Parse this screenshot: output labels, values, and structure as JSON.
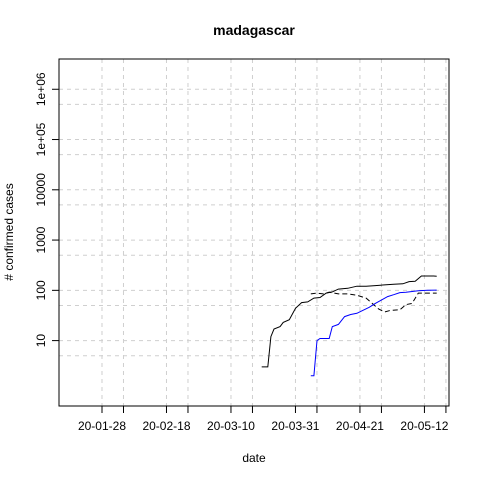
{
  "chart_data": {
    "type": "line",
    "title": "madagascar",
    "xlabel": "date",
    "ylabel": "# confirmed cases",
    "y_scale": "log",
    "ylim": [
      0.5,
      4000000
    ],
    "x_start": "2020-01-14",
    "x_end": "2020-05-20",
    "x_ticks": [
      "20-01-28",
      "20-02-18",
      "20-03-10",
      "20-03-31",
      "20-04-21",
      "20-05-12"
    ],
    "x_tick_dates": [
      "2020-01-28",
      "2020-02-18",
      "2020-03-10",
      "2020-03-31",
      "2020-04-21",
      "2020-05-12"
    ],
    "x_minor_grid_dates": [
      "2020-02-04",
      "2020-02-25",
      "2020-03-17",
      "2020-04-07",
      "2020-04-28",
      "2020-05-19"
    ],
    "y_ticks": [
      "10",
      "100",
      "1000",
      "10000",
      "1e+05",
      "1e+06"
    ],
    "y_tick_values": [
      10,
      100,
      1000,
      10000,
      100000,
      1000000
    ],
    "y_minor_grid_values": [
      5,
      50,
      500,
      5000,
      50000,
      500000
    ],
    "grid": true,
    "series": [
      {
        "style": "solid",
        "color": "#000000",
        "points": [
          [
            "2020-03-20",
            3
          ],
          [
            "2020-03-22",
            3
          ],
          [
            "2020-03-23",
            12
          ],
          [
            "2020-03-24",
            17
          ],
          [
            "2020-03-26",
            19
          ],
          [
            "2020-03-27",
            23
          ],
          [
            "2020-03-29",
            26
          ],
          [
            "2020-03-31",
            44
          ],
          [
            "2020-04-02",
            57
          ],
          [
            "2020-04-04",
            59
          ],
          [
            "2020-04-06",
            70
          ],
          [
            "2020-04-08",
            72
          ],
          [
            "2020-04-10",
            88
          ],
          [
            "2020-04-12",
            93
          ],
          [
            "2020-04-14",
            106
          ],
          [
            "2020-04-17",
            110
          ],
          [
            "2020-04-20",
            121
          ],
          [
            "2020-04-23",
            121
          ],
          [
            "2020-04-26",
            124
          ],
          [
            "2020-04-29",
            128
          ],
          [
            "2020-05-02",
            132
          ],
          [
            "2020-05-05",
            135
          ],
          [
            "2020-05-07",
            149
          ],
          [
            "2020-05-09",
            151
          ],
          [
            "2020-05-11",
            193
          ],
          [
            "2020-05-13",
            193
          ],
          [
            "2020-05-15",
            193
          ],
          [
            "2020-05-16",
            190
          ]
        ]
      },
      {
        "style": "dashed",
        "color": "#000000",
        "points": [
          [
            "2020-04-05",
            85
          ],
          [
            "2020-04-07",
            88
          ],
          [
            "2020-04-09",
            85
          ],
          [
            "2020-04-11",
            92
          ],
          [
            "2020-04-14",
            85
          ],
          [
            "2020-04-17",
            85
          ],
          [
            "2020-04-20",
            80
          ],
          [
            "2020-04-23",
            70
          ],
          [
            "2020-04-25",
            55
          ],
          [
            "2020-04-27",
            43
          ],
          [
            "2020-04-29",
            37
          ],
          [
            "2020-05-01",
            40
          ],
          [
            "2020-05-04",
            41
          ],
          [
            "2020-05-06",
            52
          ],
          [
            "2020-05-08",
            55
          ],
          [
            "2020-05-10",
            88
          ],
          [
            "2020-05-13",
            88
          ],
          [
            "2020-05-16",
            88
          ]
        ]
      },
      {
        "style": "solid",
        "color": "#0000ff",
        "points": [
          [
            "2020-04-05",
            2
          ],
          [
            "2020-04-06",
            2
          ],
          [
            "2020-04-07",
            10
          ],
          [
            "2020-04-08",
            11
          ],
          [
            "2020-04-11",
            11
          ],
          [
            "2020-04-12",
            19
          ],
          [
            "2020-04-14",
            21
          ],
          [
            "2020-04-16",
            30
          ],
          [
            "2020-04-18",
            33
          ],
          [
            "2020-04-20",
            35
          ],
          [
            "2020-04-22",
            40
          ],
          [
            "2020-04-24",
            46
          ],
          [
            "2020-04-26",
            55
          ],
          [
            "2020-04-28",
            64
          ],
          [
            "2020-04-30",
            75
          ],
          [
            "2020-05-02",
            82
          ],
          [
            "2020-05-04",
            90
          ],
          [
            "2020-05-06",
            92
          ],
          [
            "2020-05-08",
            95
          ],
          [
            "2020-05-10",
            98
          ],
          [
            "2020-05-13",
            100
          ],
          [
            "2020-05-16",
            101
          ]
        ]
      }
    ]
  }
}
